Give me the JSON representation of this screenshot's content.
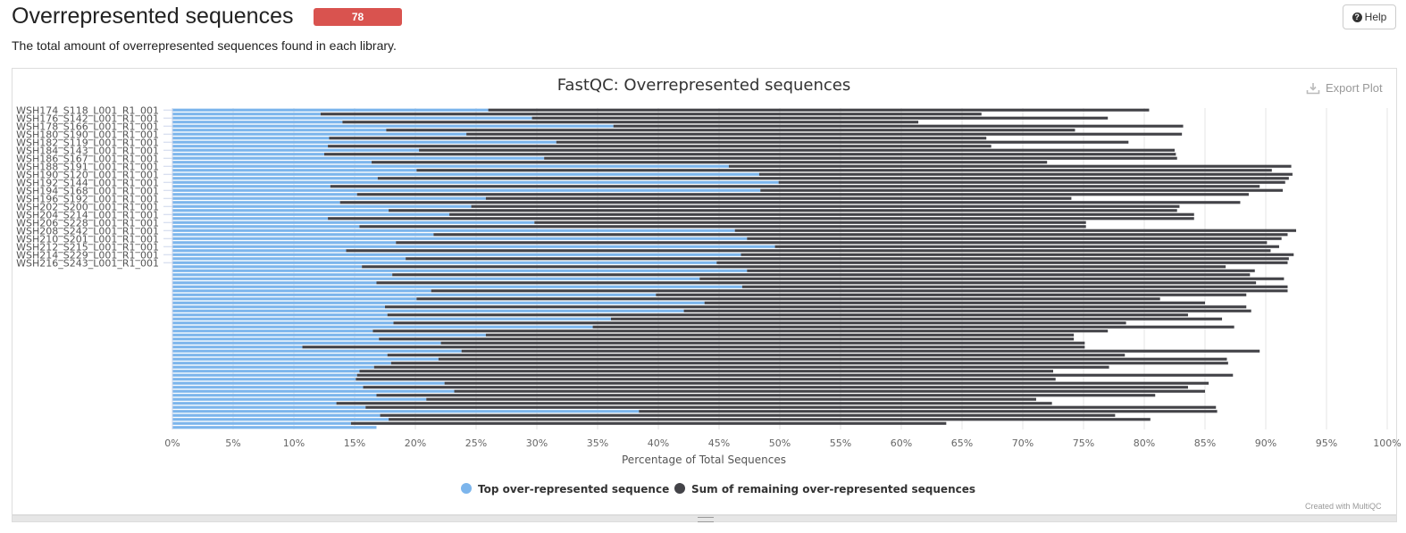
{
  "header": {
    "title": "Overrepresented sequences",
    "badge": "78",
    "help_label": "Help",
    "description": "The total amount of overrepresented sequences found in each library."
  },
  "plot": {
    "export_label": "Export Plot",
    "credit": "Created with MultiQC"
  },
  "colors": {
    "top": "#7cb5ec",
    "rest": "#434348",
    "badge": "#d9534f"
  },
  "icons": {
    "help": "question-circle-icon",
    "export": "download-icon",
    "resize": "resize-grip-icon"
  },
  "chart_data": {
    "type": "bar",
    "orientation": "horizontal",
    "stacked": true,
    "title": "FastQC: Overrepresented sequences",
    "xlabel": "Percentage of Total Sequences",
    "xlim": [
      0,
      100
    ],
    "xticks": [
      "0%",
      "5%",
      "10%",
      "15%",
      "20%",
      "25%",
      "30%",
      "35%",
      "40%",
      "45%",
      "50%",
      "55%",
      "60%",
      "65%",
      "70%",
      "75%",
      "80%",
      "85%",
      "90%",
      "95%",
      "100%"
    ],
    "grid": true,
    "legend_position": "bottom-center",
    "category_labels": [
      "WSH174_S118_L001_R1_001",
      "WSH176_S142_L001_R1_001",
      "WSH178_S166_L001_R1_001",
      "WSH180_S190_L001_R1_001",
      "WSH182_S119_L001_R1_001",
      "WSH184_S143_L001_R1_001",
      "WSH186_S167_L001_R1_001",
      "WSH188_S191_L001_R1_001",
      "WSH190_S120_L001_R1_001",
      "WSH192_S144_L001_R1_001",
      "WSH194_S168_L001_R1_001",
      "WSH196_S192_L001_R1_001",
      "WSH202_S200_L001_R1_001",
      "WSH204_S214_L001_R1_001",
      "WSH206_S228_L001_R1_001",
      "WSH208_S242_L001_R1_001",
      "WSH210_S201_L001_R1_001",
      "WSH212_S215_L001_R1_001",
      "WSH214_S229_L001_R1_001",
      "WSH216_S243_L001_R1_001"
    ],
    "rows_per_label": 2,
    "series": [
      {
        "name": "Top over-represented sequence",
        "values": [
          26.0,
          12.2,
          29.6,
          14.0,
          36.3,
          17.6,
          24.2,
          12.9,
          31.6,
          12.8,
          20.3,
          12.5,
          30.6,
          16.4,
          45.8,
          20.1,
          48.3,
          16.9,
          49.9,
          13.0,
          48.4,
          15.2,
          25.8,
          13.8,
          24.6,
          17.8,
          22.8,
          12.8,
          29.8,
          15.4,
          46.3,
          21.5,
          47.3,
          18.4,
          49.6,
          14.3,
          46.8,
          19.2,
          44.8,
          15.6,
          47.3,
          18.1,
          43.4,
          16.8,
          46.9,
          21.3,
          39.8,
          20.1,
          43.8,
          17.5,
          42.1,
          17.7,
          36.1,
          18.2,
          34.6,
          16.5,
          25.8,
          17.0,
          22.1,
          10.7,
          23.8,
          17.7,
          21.9,
          18.0,
          16.6,
          15.4,
          15.2,
          15.1,
          22.4,
          15.7,
          23.2,
          16.8,
          20.9,
          13.5,
          15.9,
          38.4,
          17.1,
          17.8,
          14.7,
          16.8
        ]
      },
      {
        "name": "Sum of remaining over-represented sequences",
        "values": [
          54.4,
          54.4,
          47.4,
          47.4,
          46.9,
          56.7,
          58.9,
          54.1,
          47.1,
          54.6,
          62.2,
          70.1,
          52.1,
          55.6,
          46.3,
          70.4,
          43.9,
          75.0,
          41.7,
          76.5,
          43.0,
          73.4,
          48.2,
          74.1,
          58.3,
          64.9,
          61.3,
          71.3,
          45.4,
          59.8,
          46.2,
          70.3,
          44.0,
          71.7,
          41.5,
          76.1,
          45.5,
          72.7,
          47.0,
          71.1,
          41.8,
          70.6,
          48.1,
          72.4,
          44.9,
          70.5,
          48.6,
          61.2,
          41.2,
          70.9,
          46.7,
          65.9,
          50.3,
          60.3,
          52.8,
          60.5,
          48.4,
          57.2,
          53.0,
          64.4,
          65.7,
          60.7,
          64.9,
          68.9,
          60.5,
          57.1,
          72.1,
          57.6,
          62.9,
          67.9,
          61.8,
          64.1,
          50.2,
          58.9,
          70.0,
          47.6,
          60.5,
          62.7,
          49.0,
          0
        ]
      }
    ]
  }
}
